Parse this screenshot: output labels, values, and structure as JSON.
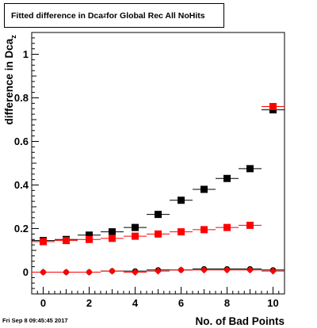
{
  "title_prefix": "Fitted difference in Dca",
  "title_sub": "z",
  "title_suffix": " for Global Rec All NoHits",
  "footer_timestamp": "Fri Sep  8 09:45:45 2017",
  "chart_data": {
    "type": "scatter",
    "xlabel": "No. of Bad Points",
    "ylabel": "difference in Dca",
    "ylabel_sub": "z",
    "xlim": [
      -0.5,
      10.5
    ],
    "ylim": [
      -0.1,
      1.1
    ],
    "xticks": [
      0,
      2,
      4,
      6,
      8,
      10
    ],
    "yticks": [
      0,
      0.2,
      0.4,
      0.6,
      0.8,
      1
    ],
    "grid": false,
    "x": [
      0,
      1,
      2,
      3,
      4,
      5,
      6,
      7,
      8,
      9,
      10
    ],
    "series": [
      {
        "marker": "square",
        "color": "#000000",
        "values": [
          0.145,
          0.15,
          0.17,
          0.185,
          0.205,
          0.265,
          0.33,
          0.38,
          0.43,
          0.475,
          0.745
        ]
      },
      {
        "marker": "square",
        "color": "#ff0000",
        "values": [
          0.14,
          0.145,
          0.15,
          0.155,
          0.165,
          0.175,
          0.185,
          0.195,
          0.205,
          0.215,
          0.76
        ]
      },
      {
        "marker": "circle",
        "color": "#000000",
        "values": [
          0.0,
          0.0,
          0.0,
          0.005,
          0.005,
          0.01,
          0.01,
          0.015,
          0.015,
          0.015,
          0.01
        ]
      },
      {
        "marker": "diamond",
        "color": "#ff0000",
        "values": [
          0.0,
          0.0,
          0.0,
          0.005,
          0.0,
          0.005,
          0.01,
          0.01,
          0.01,
          0.01,
          0.005
        ]
      }
    ]
  }
}
